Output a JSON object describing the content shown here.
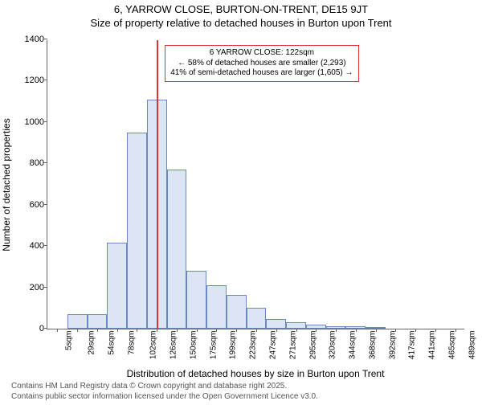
{
  "title": {
    "line1": "6, YARROW CLOSE, BURTON-ON-TRENT, DE15 9JT",
    "line2": "Size of property relative to detached houses in Burton upon Trent"
  },
  "chart": {
    "type": "histogram",
    "background_color": "#ffffff",
    "border_color": "#666666",
    "ylabel": "Number of detached properties",
    "xlabel": "Distribution of detached houses by size in Burton upon Trent",
    "ylim": [
      0,
      1400
    ],
    "ytick_step": 200,
    "label_fontsize": 12,
    "tick_fontsize": 11,
    "xtick_fontsize": 10,
    "bar_fill": "#dce5f4",
    "bar_stroke": "#6b89bf",
    "bar_stroke_width": 1,
    "categories": [
      "5sqm",
      "29sqm",
      "54sqm",
      "78sqm",
      "102sqm",
      "126sqm",
      "150sqm",
      "175sqm",
      "199sqm",
      "223sqm",
      "247sqm",
      "271sqm",
      "295sqm",
      "320sqm",
      "344sqm",
      "368sqm",
      "392sqm",
      "417sqm",
      "441sqm",
      "465sqm",
      "489sqm"
    ],
    "values": [
      0,
      70,
      70,
      415,
      950,
      1110,
      770,
      280,
      210,
      165,
      100,
      45,
      30,
      20,
      10,
      10,
      5,
      0,
      0,
      0,
      0
    ],
    "annotation": {
      "line1": "6 YARROW CLOSE: 122sqm",
      "line2": "← 58% of detached houses are smaller (2,293)",
      "line3": "41% of semi-detached houses are larger (1,605) →",
      "border_color": "#dd3333",
      "category_index": 5
    },
    "vline": {
      "color": "#dd3333",
      "category_index": 5
    }
  },
  "footer": {
    "line1": "Contains HM Land Registry data © Crown copyright and database right 2025.",
    "line2": "Contains public sector information licensed under the Open Government Licence v3.0."
  }
}
